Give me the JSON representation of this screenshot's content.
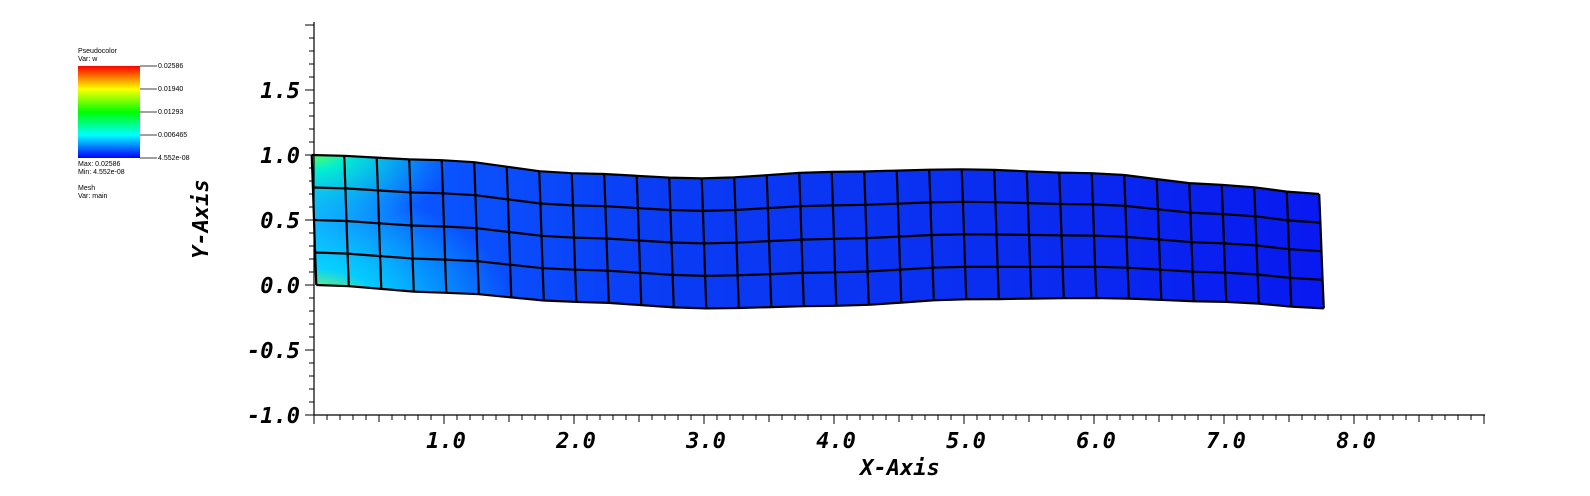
{
  "legend": {
    "title": "Pseudocolor",
    "var_label": "Var: w",
    "tick_labels": [
      "0.02586",
      "0.01940",
      "0.01293",
      "0.006465",
      "4.552e-08"
    ],
    "max_label": "Max: 0.02586",
    "min_label": "Min: 4.552e-08",
    "mesh_title": "Mesh",
    "mesh_var": "Var: main"
  },
  "chart_data": {
    "type": "heatmap",
    "subtype": "pseudocolor-mesh",
    "variable": "w",
    "xlabel": "X-Axis",
    "ylabel": "Y-Axis",
    "xlim": [
      0.0,
      9.0
    ],
    "ylim": [
      -1.0,
      2.0
    ],
    "x_ticks": [
      "1.0",
      "2.0",
      "3.0",
      "4.0",
      "5.0",
      "6.0",
      "7.0",
      "8.0"
    ],
    "x_tick_values": [
      1,
      2,
      3,
      4,
      5,
      6,
      7,
      8
    ],
    "y_ticks": [
      "1.5",
      "1.0",
      "0.5",
      "0.0",
      "-0.5",
      "-1.0"
    ],
    "y_tick_values": [
      1.5,
      1.0,
      0.5,
      0.0,
      -0.5,
      -1.0
    ],
    "color_range": [
      4.552e-08,
      0.02586
    ],
    "colormap": [
      "#0000ff",
      "#00ffff",
      "#00ff00",
      "#ffff00",
      "#ff0000"
    ],
    "mesh_line_color": "#000000",
    "mesh": {
      "columns": 31,
      "rows": 4,
      "x_range": [
        0.0,
        7.75
      ],
      "top_edge": [
        [
          0.0,
          1.0
        ],
        [
          1.0,
          0.96
        ],
        [
          2.0,
          0.86
        ],
        [
          3.0,
          0.82
        ],
        [
          4.0,
          0.87
        ],
        [
          5.0,
          0.89
        ],
        [
          6.0,
          0.86
        ],
        [
          7.0,
          0.77
        ],
        [
          7.75,
          0.7
        ]
      ],
      "bottom_edge": [
        [
          0.0,
          0.0
        ],
        [
          1.0,
          -0.06
        ],
        [
          2.0,
          -0.13
        ],
        [
          3.0,
          -0.18
        ],
        [
          4.0,
          -0.16
        ],
        [
          5.0,
          -0.11
        ],
        [
          6.0,
          -0.1
        ],
        [
          7.0,
          -0.13
        ],
        [
          7.75,
          -0.18
        ]
      ],
      "high_value_regions": [
        {
          "x": 0.0,
          "y": 1.0,
          "value": 0.015
        },
        {
          "x": 0.0,
          "y": 0.0,
          "value": 0.02586
        }
      ]
    }
  }
}
